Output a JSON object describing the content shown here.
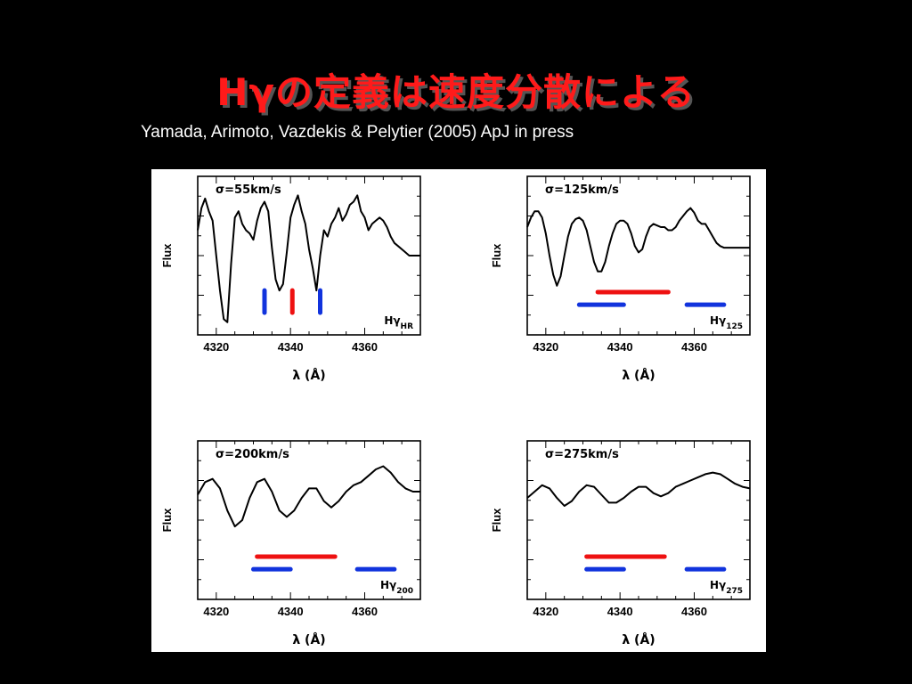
{
  "page": {
    "title": "Hγの定義は速度分散による",
    "subtitle": "Yamada, Arimoto, Vazdekis & Pelytier (2005) ApJ in press"
  },
  "colors": {
    "background": "#000000",
    "title": "#ff1a1a",
    "subtitle": "#ffffff",
    "figure_bg": "#ffffff",
    "spectrum": "#000000",
    "feature_band": "#ee1111",
    "continuum_band": "#1133dd"
  },
  "chart_data": [
    {
      "type": "line",
      "label": "σ=55km/s",
      "index_name": "Hγ",
      "index_sub": "HR",
      "xlabel": "λ (Å)",
      "ylabel": "Flux",
      "xlim": [
        4315,
        4375
      ],
      "ylim": [
        0,
        1
      ],
      "xticks": [
        4320,
        4340,
        4360
      ],
      "x": [
        4315,
        4316,
        4317,
        4318,
        4319,
        4320,
        4321,
        4322,
        4323,
        4324,
        4325,
        4326,
        4327,
        4328,
        4329,
        4330,
        4331,
        4332,
        4333,
        4334,
        4335,
        4336,
        4337,
        4338,
        4339,
        4340,
        4341,
        4342,
        4343,
        4344,
        4345,
        4346,
        4347,
        4348,
        4349,
        4350,
        4351,
        4352,
        4353,
        4354,
        4355,
        4356,
        4357,
        4358,
        4359,
        4360,
        4361,
        4362,
        4363,
        4364,
        4365,
        4366,
        4367,
        4368,
        4369,
        4370,
        4371,
        4372,
        4373,
        4374,
        4375
      ],
      "y": [
        0.66,
        0.8,
        0.86,
        0.78,
        0.72,
        0.5,
        0.28,
        0.1,
        0.08,
        0.45,
        0.74,
        0.78,
        0.7,
        0.66,
        0.64,
        0.6,
        0.72,
        0.8,
        0.84,
        0.78,
        0.55,
        0.35,
        0.28,
        0.32,
        0.52,
        0.74,
        0.82,
        0.88,
        0.78,
        0.7,
        0.54,
        0.42,
        0.28,
        0.5,
        0.66,
        0.62,
        0.7,
        0.74,
        0.8,
        0.72,
        0.76,
        0.82,
        0.84,
        0.88,
        0.78,
        0.74,
        0.66,
        0.7,
        0.72,
        0.74,
        0.72,
        0.68,
        0.62,
        0.58,
        0.56,
        0.54,
        0.52,
        0.5,
        0.5,
        0.5,
        0.5
      ],
      "bands": [
        {
          "kind": "continuum",
          "orient": "vertical",
          "x": 4333.0,
          "y": [
            0.14,
            0.28
          ]
        },
        {
          "kind": "feature",
          "orient": "vertical",
          "x": 4340.5,
          "y": [
            0.14,
            0.28
          ]
        },
        {
          "kind": "continuum",
          "orient": "vertical",
          "x": 4348.0,
          "y": [
            0.14,
            0.28
          ]
        }
      ]
    },
    {
      "type": "line",
      "label": "σ=125km/s",
      "index_name": "Hγ",
      "index_sub": "125",
      "xlabel": "λ (Å)",
      "ylabel": "Flux",
      "xlim": [
        4315,
        4375
      ],
      "ylim": [
        0,
        1
      ],
      "xticks": [
        4320,
        4340,
        4360
      ],
      "x": [
        4315,
        4316,
        4317,
        4318,
        4319,
        4320,
        4321,
        4322,
        4323,
        4324,
        4325,
        4326,
        4327,
        4328,
        4329,
        4330,
        4331,
        4332,
        4333,
        4334,
        4335,
        4336,
        4337,
        4338,
        4339,
        4340,
        4341,
        4342,
        4343,
        4344,
        4345,
        4346,
        4347,
        4348,
        4349,
        4350,
        4351,
        4352,
        4353,
        4354,
        4355,
        4356,
        4357,
        4358,
        4359,
        4360,
        4361,
        4362,
        4363,
        4364,
        4365,
        4366,
        4367,
        4368,
        4369,
        4370,
        4371,
        4372,
        4373,
        4374,
        4375
      ],
      "y": [
        0.68,
        0.74,
        0.78,
        0.78,
        0.74,
        0.64,
        0.5,
        0.38,
        0.31,
        0.37,
        0.5,
        0.62,
        0.7,
        0.73,
        0.74,
        0.72,
        0.66,
        0.56,
        0.46,
        0.4,
        0.4,
        0.46,
        0.56,
        0.64,
        0.7,
        0.72,
        0.72,
        0.7,
        0.64,
        0.56,
        0.52,
        0.54,
        0.62,
        0.68,
        0.7,
        0.69,
        0.68,
        0.68,
        0.66,
        0.66,
        0.68,
        0.72,
        0.75,
        0.78,
        0.8,
        0.77,
        0.72,
        0.7,
        0.7,
        0.66,
        0.62,
        0.58,
        0.56,
        0.55,
        0.55,
        0.55,
        0.55,
        0.55,
        0.55,
        0.55,
        0.55
      ],
      "bands": [
        {
          "kind": "feature",
          "orient": "horizontal",
          "y": 0.27,
          "x": [
            4334,
            4353
          ]
        },
        {
          "kind": "continuum",
          "orient": "horizontal",
          "y": 0.19,
          "x": [
            4329,
            4341
          ]
        },
        {
          "kind": "continuum",
          "orient": "horizontal",
          "y": 0.19,
          "x": [
            4358,
            4368
          ]
        }
      ]
    },
    {
      "type": "line",
      "label": "σ=200km/s",
      "index_name": "Hγ",
      "index_sub": "200",
      "xlabel": "λ (Å)",
      "ylabel": "Flux",
      "xlim": [
        4315,
        4375
      ],
      "ylim": [
        0,
        1
      ],
      "xticks": [
        4320,
        4340,
        4360
      ],
      "x": [
        4315,
        4317,
        4319,
        4321,
        4323,
        4325,
        4327,
        4329,
        4331,
        4333,
        4335,
        4337,
        4339,
        4341,
        4343,
        4345,
        4347,
        4349,
        4351,
        4353,
        4355,
        4357,
        4359,
        4361,
        4363,
        4365,
        4367,
        4369,
        4371,
        4373,
        4375
      ],
      "y": [
        0.66,
        0.74,
        0.76,
        0.7,
        0.56,
        0.46,
        0.5,
        0.64,
        0.74,
        0.76,
        0.68,
        0.56,
        0.52,
        0.56,
        0.64,
        0.7,
        0.7,
        0.62,
        0.58,
        0.62,
        0.68,
        0.72,
        0.74,
        0.78,
        0.82,
        0.84,
        0.8,
        0.74,
        0.7,
        0.68,
        0.68
      ],
      "bands": [
        {
          "kind": "feature",
          "orient": "horizontal",
          "y": 0.27,
          "x": [
            4331,
            4352
          ]
        },
        {
          "kind": "continuum",
          "orient": "horizontal",
          "y": 0.19,
          "x": [
            4330,
            4340
          ]
        },
        {
          "kind": "continuum",
          "orient": "horizontal",
          "y": 0.19,
          "x": [
            4358,
            4368
          ]
        }
      ]
    },
    {
      "type": "line",
      "label": "σ=275km/s",
      "index_name": "Hγ",
      "index_sub": "275",
      "xlabel": "λ (Å)",
      "ylabel": "Flux",
      "xlim": [
        4315,
        4375
      ],
      "ylim": [
        0,
        1
      ],
      "xticks": [
        4320,
        4340,
        4360
      ],
      "x": [
        4315,
        4317,
        4319,
        4321,
        4323,
        4325,
        4327,
        4329,
        4331,
        4333,
        4335,
        4337,
        4339,
        4341,
        4343,
        4345,
        4347,
        4349,
        4351,
        4353,
        4355,
        4357,
        4359,
        4361,
        4363,
        4365,
        4367,
        4369,
        4371,
        4373,
        4375
      ],
      "y": [
        0.64,
        0.68,
        0.72,
        0.7,
        0.64,
        0.59,
        0.62,
        0.68,
        0.72,
        0.71,
        0.66,
        0.61,
        0.61,
        0.64,
        0.68,
        0.71,
        0.71,
        0.67,
        0.65,
        0.67,
        0.71,
        0.73,
        0.75,
        0.77,
        0.79,
        0.8,
        0.79,
        0.76,
        0.73,
        0.71,
        0.7
      ],
      "bands": [
        {
          "kind": "feature",
          "orient": "horizontal",
          "y": 0.27,
          "x": [
            4331,
            4352
          ]
        },
        {
          "kind": "continuum",
          "orient": "horizontal",
          "y": 0.19,
          "x": [
            4331,
            4341
          ]
        },
        {
          "kind": "continuum",
          "orient": "horizontal",
          "y": 0.19,
          "x": [
            4358,
            4368
          ]
        }
      ]
    }
  ]
}
